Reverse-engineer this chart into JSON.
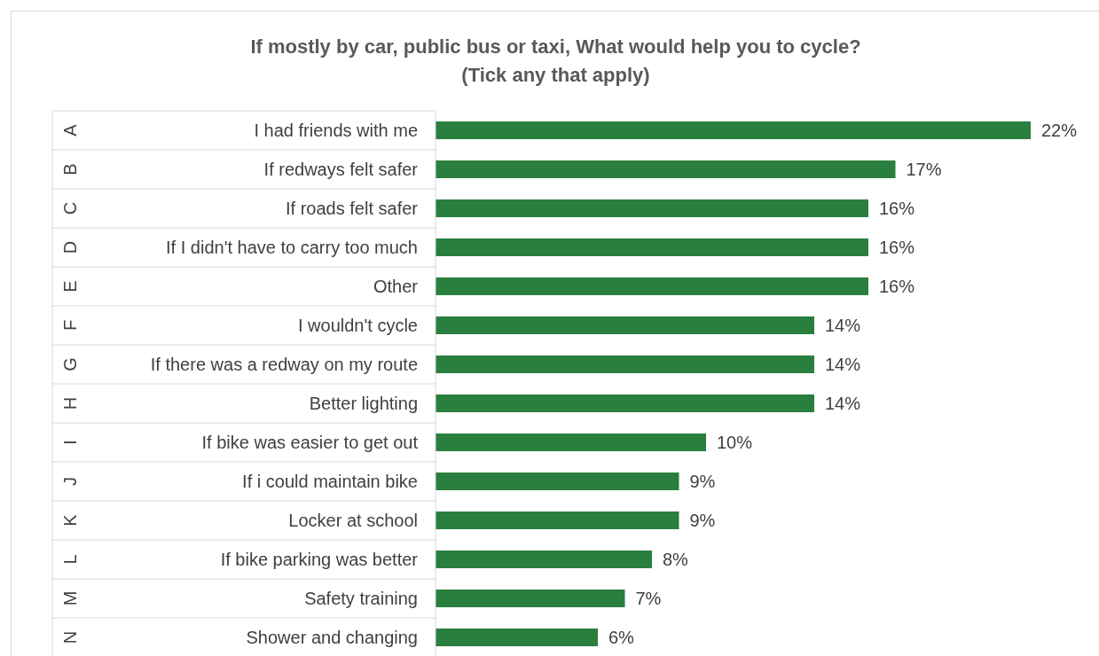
{
  "chart_data": {
    "type": "bar",
    "orientation": "horizontal",
    "title": "If mostly by car, public bus or taxi, What would help you to cycle?",
    "subtitle": "(Tick any that apply)",
    "categories": [
      "I had friends with me",
      "If redways felt safer",
      "If roads felt safer",
      "If I didn't have to carry too much",
      "Other",
      "I wouldn't cycle",
      "If there was a redway on my route",
      "Better lighting",
      "If bike was easier to get out",
      "If i could maintain bike",
      "Locker at school",
      "If bike parking was better",
      "Safety training",
      "Shower and changing"
    ],
    "values": [
      22,
      17,
      16,
      16,
      16,
      14,
      14,
      14,
      10,
      9,
      9,
      8,
      7,
      6
    ],
    "value_labels": [
      "22%",
      "17%",
      "16%",
      "16%",
      "16%",
      "14%",
      "14%",
      "14%",
      "10%",
      "9%",
      "9%",
      "8%",
      "7%",
      "6%"
    ],
    "color": "#2a7f3e",
    "grid": false,
    "legend": false,
    "annotations": [
      "A",
      "B",
      "C",
      "D",
      "E",
      "F",
      "G",
      "H",
      "I",
      "J",
      "K",
      "L",
      "M",
      "N"
    ]
  }
}
